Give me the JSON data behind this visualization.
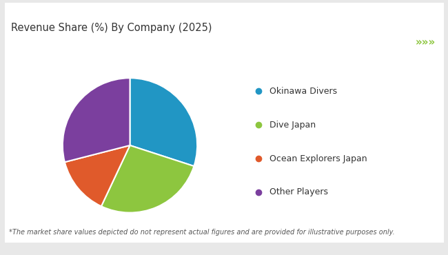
{
  "title": "Revenue Share (%) By Company (2025)",
  "footnote": "*The market share values depicted do not represent actual figures and are provided for illustrative purposes only.",
  "labels": [
    "Okinawa Divers",
    "Dive Japan",
    "Ocean Explorers Japan",
    "Other Players"
  ],
  "values": [
    30,
    27,
    14,
    29
  ],
  "colors": [
    "#2196c4",
    "#8dc63f",
    "#e05a2b",
    "#7b3f9e"
  ],
  "background_color": "#e8e8e8",
  "main_bg": "#ffffff",
  "header_line_color": "#8dc63f",
  "arrow_color": "#8dc63f",
  "title_fontsize": 10.5,
  "footnote_fontsize": 7,
  "legend_fontsize": 9
}
